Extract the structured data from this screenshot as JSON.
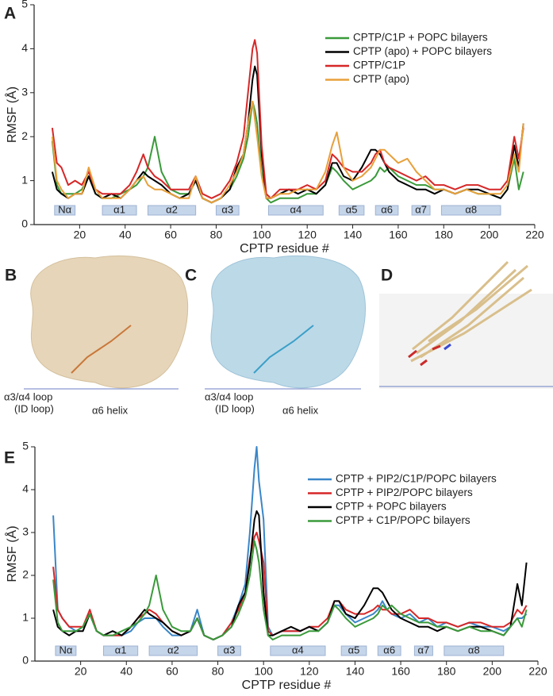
{
  "chart_data": [
    {
      "type": "line",
      "panel_label": "A",
      "xlabel": "CPTP residue #",
      "ylabel": "RMSF (Å)",
      "xlim": [
        0,
        220
      ],
      "xticks": [
        20,
        40,
        60,
        80,
        100,
        120,
        140,
        160,
        180,
        200,
        220
      ],
      "ylim": [
        0,
        5
      ],
      "yticks": [
        0,
        1,
        2,
        3,
        4,
        5
      ],
      "legend": "upper right",
      "x": [
        8,
        10,
        12,
        15,
        18,
        21,
        24,
        27,
        30,
        34,
        38,
        42,
        45,
        48,
        50,
        53,
        56,
        60,
        64,
        68,
        71,
        74,
        78,
        82,
        86,
        89,
        92,
        94,
        96,
        97,
        98,
        100,
        102,
        104,
        108,
        112,
        116,
        120,
        124,
        128,
        131,
        133,
        136,
        140,
        144,
        148,
        150,
        152,
        154,
        156,
        160,
        164,
        168,
        172,
        176,
        180,
        185,
        190,
        195,
        200,
        205,
        208,
        211,
        213,
        215
      ],
      "series": [
        {
          "name": "CPTP/C1P + POPC bilayers",
          "color": "#3a9a3a",
          "values": [
            1.9,
            0.9,
            0.7,
            0.7,
            0.7,
            0.8,
            1.1,
            0.7,
            0.6,
            0.6,
            0.7,
            0.8,
            0.9,
            1.1,
            1.3,
            2.0,
            1.2,
            0.8,
            0.7,
            0.7,
            1.0,
            0.6,
            0.5,
            0.6,
            0.8,
            1.1,
            1.5,
            2.0,
            2.8,
            2.6,
            2.3,
            1.2,
            0.6,
            0.5,
            0.6,
            0.6,
            0.6,
            0.7,
            0.7,
            0.9,
            1.3,
            1.2,
            1.0,
            0.8,
            0.9,
            1.0,
            1.1,
            1.3,
            1.2,
            1.3,
            1.1,
            1.0,
            0.9,
            0.9,
            0.8,
            0.8,
            0.7,
            0.8,
            0.7,
            0.7,
            0.6,
            0.8,
            1.5,
            0.8,
            1.2
          ]
        },
        {
          "name": "CPTP (apo) + POPC bilayers",
          "color": "#000000",
          "values": [
            1.2,
            0.8,
            0.7,
            0.6,
            0.7,
            0.7,
            1.1,
            0.7,
            0.6,
            0.7,
            0.6,
            0.8,
            1.0,
            1.2,
            1.1,
            1.0,
            0.9,
            0.7,
            0.6,
            0.7,
            1.0,
            0.6,
            0.5,
            0.6,
            0.8,
            1.3,
            1.6,
            2.3,
            3.3,
            3.6,
            3.4,
            1.6,
            0.6,
            0.6,
            0.7,
            0.8,
            0.7,
            0.8,
            0.7,
            0.9,
            1.4,
            1.4,
            1.1,
            1.0,
            1.3,
            1.7,
            1.7,
            1.6,
            1.4,
            1.2,
            1.0,
            0.9,
            0.8,
            0.8,
            0.7,
            0.8,
            0.7,
            0.8,
            0.8,
            0.7,
            0.6,
            0.8,
            1.8,
            1.3,
            2.3
          ]
        },
        {
          "name": "CPTP/C1P",
          "color": "#d62728",
          "values": [
            2.2,
            1.4,
            1.3,
            0.9,
            1.0,
            0.9,
            1.2,
            0.8,
            0.7,
            0.7,
            0.7,
            0.9,
            1.2,
            1.6,
            1.3,
            1.1,
            1.0,
            0.8,
            0.8,
            0.8,
            1.1,
            0.7,
            0.6,
            0.7,
            1.0,
            1.4,
            2.0,
            3.0,
            4.0,
            4.2,
            3.9,
            1.8,
            0.7,
            0.6,
            0.8,
            0.8,
            0.8,
            0.9,
            0.8,
            1.0,
            1.6,
            1.5,
            1.3,
            1.2,
            1.2,
            1.4,
            1.6,
            1.7,
            1.4,
            1.3,
            1.2,
            1.1,
            1.0,
            1.1,
            0.9,
            0.9,
            0.8,
            0.9,
            0.9,
            0.8,
            0.8,
            1.0,
            2.0,
            1.5,
            2.2
          ]
        },
        {
          "name": "CPTP (apo)",
          "color": "#e8a03a",
          "values": [
            2.0,
            1.0,
            0.8,
            0.6,
            0.7,
            0.7,
            1.3,
            0.8,
            0.6,
            0.6,
            0.6,
            0.8,
            1.0,
            1.1,
            0.9,
            0.8,
            0.8,
            0.7,
            0.6,
            0.6,
            1.1,
            0.6,
            0.5,
            0.6,
            0.9,
            1.2,
            1.6,
            2.3,
            2.8,
            2.4,
            2.0,
            1.1,
            0.6,
            0.6,
            0.7,
            0.7,
            0.8,
            0.8,
            0.8,
            1.2,
            1.8,
            2.1,
            1.3,
            1.0,
            1.1,
            1.3,
            1.5,
            1.7,
            1.7,
            1.6,
            1.4,
            1.5,
            1.2,
            1.0,
            0.8,
            0.8,
            0.7,
            0.8,
            0.7,
            0.7,
            0.7,
            0.9,
            1.6,
            1.2,
            2.3
          ]
        }
      ],
      "helices": [
        {
          "label": "Nα",
          "start": 9,
          "end": 18
        },
        {
          "label": "α1",
          "start": 30,
          "end": 45
        },
        {
          "label": "α2",
          "start": 50,
          "end": 71
        },
        {
          "label": "α3",
          "start": 80,
          "end": 90
        },
        {
          "label": "α4",
          "start": 103,
          "end": 127
        },
        {
          "label": "α5",
          "start": 134,
          "end": 145
        },
        {
          "label": "α6",
          "start": 150,
          "end": 160
        },
        {
          "label": "α7",
          "start": 166,
          "end": 174
        },
        {
          "label": "α8",
          "start": 179,
          "end": 205
        }
      ]
    },
    {
      "type": "line",
      "panel_label": "E",
      "xlabel": "CPTP residue #",
      "ylabel": "RMSF (Å)",
      "xlim": [
        0,
        220
      ],
      "xticks": [
        20,
        40,
        60,
        80,
        100,
        120,
        140,
        160,
        180,
        200,
        220
      ],
      "ylim": [
        0,
        5
      ],
      "yticks": [
        0,
        1,
        2,
        3,
        4,
        5
      ],
      "legend": "upper right",
      "x": [
        8,
        10,
        12,
        15,
        18,
        21,
        24,
        27,
        30,
        34,
        38,
        42,
        45,
        48,
        50,
        53,
        56,
        60,
        64,
        68,
        71,
        74,
        78,
        82,
        86,
        89,
        92,
        94,
        96,
        97,
        98,
        100,
        102,
        104,
        108,
        112,
        116,
        120,
        124,
        128,
        131,
        133,
        136,
        140,
        144,
        148,
        150,
        152,
        154,
        156,
        160,
        164,
        168,
        172,
        176,
        180,
        185,
        190,
        195,
        200,
        205,
        208,
        211,
        213,
        215
      ],
      "series": [
        {
          "name": "CPTP + PIP2/C1P/POPC bilayers",
          "color": "#3a86c8",
          "values": [
            3.4,
            1.2,
            1.0,
            0.8,
            0.7,
            0.8,
            1.1,
            0.7,
            0.6,
            0.6,
            0.6,
            0.7,
            0.9,
            1.0,
            1.0,
            1.0,
            0.8,
            0.6,
            0.6,
            0.7,
            1.2,
            0.6,
            0.5,
            0.6,
            0.9,
            1.3,
            1.8,
            3.0,
            4.5,
            5.0,
            4.2,
            3.3,
            0.8,
            0.6,
            0.7,
            0.7,
            0.7,
            0.8,
            0.7,
            0.9,
            1.3,
            1.3,
            1.1,
            0.9,
            1.0,
            1.1,
            1.2,
            1.4,
            1.2,
            1.1,
            1.0,
            1.1,
            0.9,
            1.0,
            0.8,
            0.9,
            0.8,
            0.9,
            0.8,
            0.8,
            0.7,
            0.8,
            1.0,
            1.0,
            1.1
          ]
        },
        {
          "name": "CPTP + PIP2/POPC bilayers",
          "color": "#d62728",
          "values": [
            2.2,
            1.2,
            1.0,
            0.8,
            0.8,
            0.8,
            1.2,
            0.7,
            0.6,
            0.6,
            0.6,
            0.8,
            1.0,
            1.1,
            1.2,
            1.1,
            0.9,
            0.7,
            0.6,
            0.7,
            1.0,
            0.6,
            0.5,
            0.6,
            0.9,
            1.2,
            1.6,
            2.4,
            2.9,
            3.0,
            2.8,
            2.3,
            0.7,
            0.6,
            0.7,
            0.7,
            0.7,
            0.8,
            0.8,
            1.0,
            1.4,
            1.4,
            1.2,
            1.1,
            1.1,
            1.2,
            1.3,
            1.2,
            1.2,
            1.1,
            1.1,
            1.2,
            1.0,
            1.0,
            0.9,
            0.9,
            0.8,
            0.9,
            0.9,
            0.8,
            0.8,
            0.9,
            1.2,
            1.1,
            1.3
          ]
        },
        {
          "name": "CPTP + POPC bilayers",
          "color": "#000000",
          "values": [
            1.2,
            0.8,
            0.7,
            0.6,
            0.7,
            0.7,
            1.1,
            0.7,
            0.6,
            0.7,
            0.6,
            0.8,
            1.0,
            1.2,
            1.1,
            1.0,
            0.9,
            0.7,
            0.6,
            0.7,
            1.0,
            0.6,
            0.5,
            0.6,
            0.8,
            1.3,
            1.6,
            2.3,
            3.3,
            3.5,
            3.4,
            1.6,
            0.6,
            0.6,
            0.7,
            0.8,
            0.7,
            0.8,
            0.7,
            0.9,
            1.4,
            1.4,
            1.1,
            1.0,
            1.3,
            1.7,
            1.7,
            1.6,
            1.4,
            1.2,
            1.0,
            0.9,
            0.8,
            0.8,
            0.7,
            0.8,
            0.7,
            0.8,
            0.8,
            0.7,
            0.6,
            0.8,
            1.8,
            1.3,
            2.3
          ]
        },
        {
          "name": "CPTP + C1P/POPC bilayers",
          "color": "#3a9a3a",
          "values": [
            1.9,
            0.9,
            0.7,
            0.7,
            0.7,
            0.8,
            1.1,
            0.7,
            0.6,
            0.6,
            0.7,
            0.8,
            0.9,
            1.1,
            1.3,
            2.0,
            1.2,
            0.8,
            0.7,
            0.7,
            1.0,
            0.6,
            0.5,
            0.6,
            0.8,
            1.1,
            1.5,
            2.0,
            2.8,
            2.6,
            2.3,
            1.2,
            0.6,
            0.5,
            0.6,
            0.6,
            0.6,
            0.7,
            0.7,
            0.9,
            1.3,
            1.2,
            1.0,
            0.8,
            0.9,
            1.0,
            1.1,
            1.3,
            1.2,
            1.3,
            1.1,
            1.0,
            0.9,
            0.9,
            0.8,
            0.8,
            0.7,
            0.8,
            0.7,
            0.7,
            0.6,
            0.8,
            1.0,
            0.8,
            1.2
          ]
        }
      ],
      "helices": [
        {
          "label": "Nα",
          "start": 9,
          "end": 18
        },
        {
          "label": "α1",
          "start": 30,
          "end": 45
        },
        {
          "label": "α2",
          "start": 50,
          "end": 71
        },
        {
          "label": "α3",
          "start": 80,
          "end": 90
        },
        {
          "label": "α4",
          "start": 103,
          "end": 127
        },
        {
          "label": "α5",
          "start": 134,
          "end": 145
        },
        {
          "label": "α6",
          "start": 150,
          "end": 160
        },
        {
          "label": "α7",
          "start": 166,
          "end": 174
        },
        {
          "label": "α8",
          "start": 179,
          "end": 205
        }
      ]
    }
  ],
  "panels": [
    {
      "label": "B",
      "annotations": [
        "α3/α4 loop",
        "(ID loop)",
        "α6 helix"
      ]
    },
    {
      "label": "C",
      "annotations": [
        "α3/α4 loop",
        "(ID loop)",
        "α6 helix"
      ]
    },
    {
      "label": "D"
    }
  ]
}
